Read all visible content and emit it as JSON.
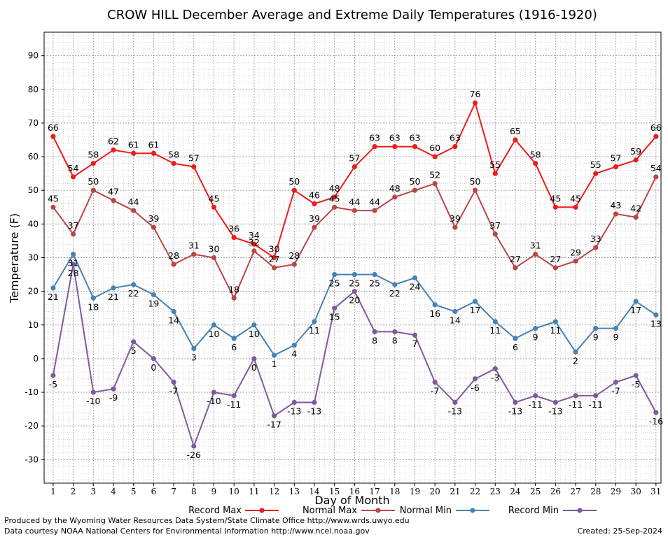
{
  "chart_data": {
    "type": "line",
    "title": "CROW HILL December Average and Extreme Daily Temperatures (1916-1920)",
    "xlabel": "Day of Month",
    "ylabel": "Temperature (F)",
    "ylim": [
      -37,
      97
    ],
    "xlim": [
      0.55,
      31.25
    ],
    "yticks": [
      -30,
      -20,
      -10,
      0,
      10,
      20,
      30,
      40,
      50,
      60,
      70,
      80,
      90
    ],
    "x": [
      1,
      2,
      3,
      4,
      5,
      6,
      7,
      8,
      9,
      10,
      11,
      12,
      13,
      14,
      15,
      16,
      17,
      18,
      19,
      20,
      21,
      22,
      23,
      24,
      25,
      26,
      27,
      28,
      29,
      30,
      31
    ],
    "grid": true,
    "legend_position": "bottom",
    "series": [
      {
        "name": "Record Max",
        "color": "#ee1c1c",
        "values": [
          66,
          54,
          58,
          62,
          61,
          61,
          58,
          57,
          45,
          36,
          34,
          30,
          50,
          46,
          48,
          57,
          63,
          63,
          63,
          60,
          63,
          76,
          55,
          65,
          58,
          45,
          45,
          55,
          57,
          59,
          66
        ]
      },
      {
        "name": "Normal Max",
        "color": "#b94646",
        "values": [
          45,
          37,
          50,
          47,
          44,
          39,
          28,
          31,
          30,
          18,
          32,
          27,
          28,
          39,
          45,
          44,
          44,
          48,
          50,
          52,
          39,
          50,
          37,
          27,
          31,
          27,
          29,
          33,
          43,
          42,
          54
        ]
      },
      {
        "name": "Normal Min",
        "color": "#4682b4",
        "values": [
          21,
          31,
          18,
          21,
          22,
          19,
          14,
          3,
          10,
          6,
          10,
          1,
          4,
          11,
          25,
          25,
          25,
          22,
          24,
          16,
          14,
          17,
          11,
          6,
          9,
          11,
          2,
          9,
          9,
          17,
          13
        ]
      },
      {
        "name": "Record Min",
        "color": "#7e5a9b",
        "values": [
          -5,
          28,
          -10,
          -9,
          5,
          0,
          -7,
          -26,
          -10,
          -11,
          0,
          -17,
          -13,
          -13,
          15,
          20,
          8,
          8,
          7,
          -7,
          -13,
          -6,
          -3,
          -13,
          -11,
          -13,
          -11,
          -11,
          -7,
          -5,
          -16
        ]
      }
    ]
  },
  "footer": {
    "line1": "Produced by the Wyoming Water Resources Data System/State Climate Office http://www.wrds.uwyo.edu",
    "line2": "Data courtesy NOAA National Centers for Environmental Information http://www.ncei.noaa.gov",
    "created": "Created:  25-Sep-2024"
  }
}
